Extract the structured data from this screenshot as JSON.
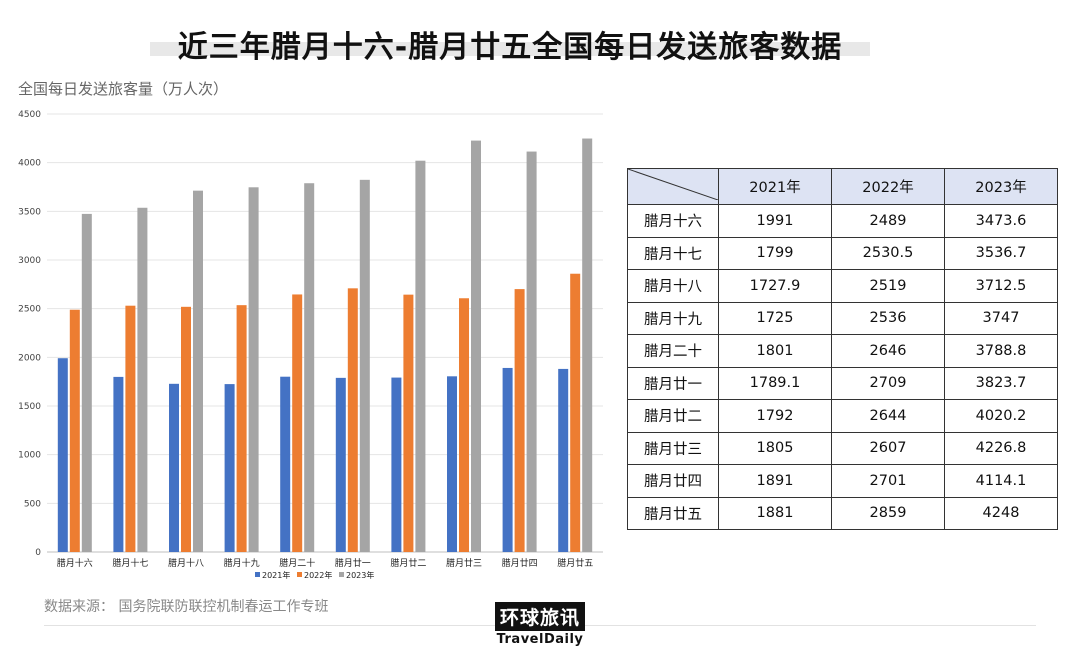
{
  "title": "近三年腊月十六-腊月廿五全国每日发送旅客数据",
  "unit_label": "全国每日发送旅客量（万人次）",
  "source": "数据来源：  国务院联防联控机制春运工作专班",
  "logo": {
    "cn": "环球旅讯",
    "en": "TravelDaily"
  },
  "colors": {
    "2021": "#4472c4",
    "2022": "#ed7d31",
    "2023": "#a5a5a5"
  },
  "chart_data": {
    "type": "bar",
    "title": "",
    "xlabel": "",
    "ylabel": "全国每日发送旅客量（万人次）",
    "ylim": [
      0,
      4500
    ],
    "yticks": [
      0,
      500,
      1000,
      1500,
      2000,
      2500,
      3000,
      3500,
      4000,
      4500
    ],
    "grid": true,
    "legend_position": "bottom",
    "categories": [
      "腊月十六",
      "腊月十七",
      "腊月十八",
      "腊月十九",
      "腊月二十",
      "腊月廿一",
      "腊月廿二",
      "腊月廿三",
      "腊月廿四",
      "腊月廿五"
    ],
    "series": [
      {
        "name": "2021年",
        "values": [
          1991,
          1799,
          1727.9,
          1725,
          1801,
          1789.1,
          1792,
          1805,
          1891,
          1881
        ]
      },
      {
        "name": "2022年",
        "values": [
          2489,
          2530.5,
          2519,
          2536,
          2646,
          2709,
          2644,
          2607,
          2701,
          2859
        ]
      },
      {
        "name": "2023年",
        "values": [
          3473.6,
          3536.7,
          3712.5,
          3747,
          3788.8,
          3823.7,
          4020.2,
          4226.8,
          4114.1,
          4248
        ]
      }
    ]
  },
  "table": {
    "headers": [
      "2021年",
      "2022年",
      "2023年"
    ],
    "rows": [
      {
        "label": "腊月十六",
        "values": [
          "1991",
          "2489",
          "3473.6"
        ]
      },
      {
        "label": "腊月十七",
        "values": [
          "1799",
          "2530.5",
          "3536.7"
        ]
      },
      {
        "label": "腊月十八",
        "values": [
          "1727.9",
          "2519",
          "3712.5"
        ]
      },
      {
        "label": "腊月十九",
        "values": [
          "1725",
          "2536",
          "3747"
        ]
      },
      {
        "label": "腊月二十",
        "values": [
          "1801",
          "2646",
          "3788.8"
        ]
      },
      {
        "label": "腊月廿一",
        "values": [
          "1789.1",
          "2709",
          "3823.7"
        ]
      },
      {
        "label": "腊月廿二",
        "values": [
          "1792",
          "2644",
          "4020.2"
        ]
      },
      {
        "label": "腊月廿三",
        "values": [
          "1805",
          "2607",
          "4226.8"
        ]
      },
      {
        "label": "腊月廿四",
        "values": [
          "1891",
          "2701",
          "4114.1"
        ]
      },
      {
        "label": "腊月廿五",
        "values": [
          "1881",
          "2859",
          "4248"
        ]
      }
    ]
  }
}
